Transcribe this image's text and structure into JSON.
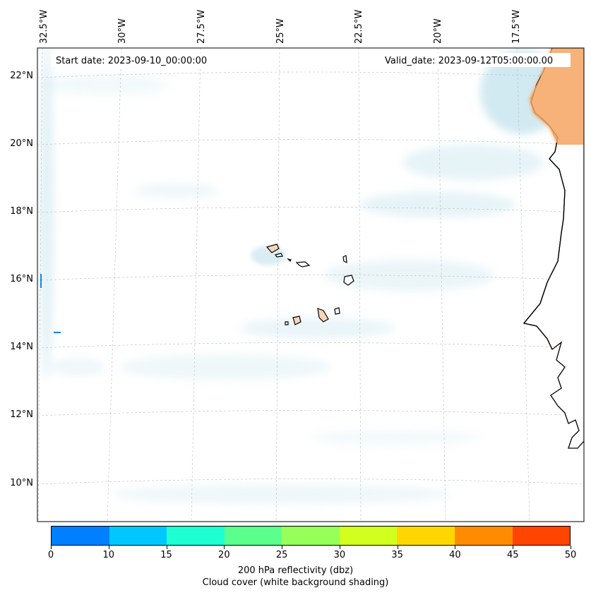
{
  "map": {
    "start_date": "Start date: 2023-09-10_00:00:00",
    "valid_date": "Valid_date: 2023-09-12T05:00:00.00",
    "lon_labels": [
      "32.5°W",
      "30°W",
      "27.5°W",
      "25°W",
      "22.5°W",
      "20°W",
      "17.5°W"
    ],
    "lat_labels": [
      "22°N",
      "20°N",
      "18°N",
      "16°N",
      "14°N",
      "12°N",
      "10°N"
    ],
    "colors": {
      "cloud": "#add8e6",
      "land_dry": "#f4a460",
      "coast": "#000000",
      "gridline": "#bbbbbb"
    }
  },
  "colorbar": {
    "tick_labels": [
      "0",
      "10",
      "15",
      "20",
      "25",
      "30",
      "35",
      "40",
      "45",
      "50"
    ],
    "colors": [
      "#0080ff",
      "#00c8ff",
      "#1effd2",
      "#5aff8c",
      "#96ff5a",
      "#d2ff1e",
      "#ffd700",
      "#ff8c00",
      "#ff4500"
    ],
    "label_line1": "200 hPa reflectivity (dbz)",
    "label_line2": "Cloud cover (white background shading)"
  }
}
